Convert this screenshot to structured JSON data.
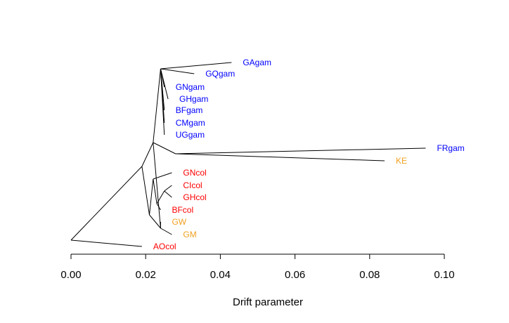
{
  "chart_data": {
    "type": "tree",
    "title": "",
    "xlabel": "Drift parameter",
    "xlim": [
      0.0,
      0.1
    ],
    "x_ticks": [
      "0.00",
      "0.02",
      "0.04",
      "0.06",
      "0.08",
      "0.10"
    ],
    "x_tick_values": [
      0.0,
      0.02,
      0.04,
      0.06,
      0.08,
      0.1
    ],
    "colors": {
      "gambiae": "#0000ff",
      "coluzzii": "#ff0000",
      "other": "#f0a020"
    },
    "root": {
      "x": 0.0
    },
    "nodes": {
      "root": {
        "x": 0.0
      },
      "n1": {
        "x": 0.019,
        "parent": "root"
      },
      "ngam": {
        "x": 0.022,
        "parent": "n1"
      },
      "ntop": {
        "x": 0.024,
        "parent": "ngam"
      },
      "ngw": {
        "x": 0.024,
        "parent": "ngam"
      },
      "nfrke": {
        "x": 0.028,
        "parent": "ngam"
      },
      "ncol": {
        "x": 0.021,
        "parent": "n1"
      },
      "ncol2": {
        "x": 0.022,
        "parent": "ncol"
      },
      "ncol3": {
        "x": 0.023,
        "parent": "ncol2"
      },
      "nci": {
        "x": 0.025,
        "parent": "ncol3"
      },
      "ngm": {
        "x": 0.024,
        "parent": "ncol"
      }
    },
    "leaves": [
      {
        "label": "GAgam",
        "group": "gambiae",
        "x": 0.043,
        "parent": "ntop"
      },
      {
        "label": "GQgam",
        "group": "gambiae",
        "x": 0.033,
        "parent": "ntop"
      },
      {
        "label": "GNgam",
        "group": "gambiae",
        "x": 0.025,
        "parent": "ntop"
      },
      {
        "label": "GHgam",
        "group": "gambiae",
        "x": 0.026,
        "parent": "ntop"
      },
      {
        "label": "BFgam",
        "group": "gambiae",
        "x": 0.025,
        "parent": "ntop"
      },
      {
        "label": "CMgam",
        "group": "gambiae",
        "x": 0.025,
        "parent": "ntop"
      },
      {
        "label": "UGgam",
        "group": "gambiae",
        "x": 0.025,
        "parent": "ntop"
      },
      {
        "label": "FRgam",
        "group": "gambiae",
        "x": 0.095,
        "parent": "nfrke"
      },
      {
        "label": "KE",
        "group": "other",
        "x": 0.084,
        "parent": "nfrke"
      },
      {
        "label": "GNcol",
        "group": "coluzzii",
        "x": 0.027,
        "parent": "ncol2"
      },
      {
        "label": "CIcol",
        "group": "coluzzii",
        "x": 0.027,
        "parent": "nci"
      },
      {
        "label": "GHcol",
        "group": "coluzzii",
        "x": 0.027,
        "parent": "nci"
      },
      {
        "label": "BFcol",
        "group": "coluzzii",
        "x": 0.024,
        "parent": "ncol3"
      },
      {
        "label": "GW",
        "group": "other",
        "x": 0.024,
        "parent": "ngm"
      },
      {
        "label": "GM",
        "group": "other",
        "x": 0.027,
        "parent": "ngm"
      },
      {
        "label": "AOcol",
        "group": "coluzzii",
        "x": 0.019,
        "parent": "root"
      }
    ]
  }
}
